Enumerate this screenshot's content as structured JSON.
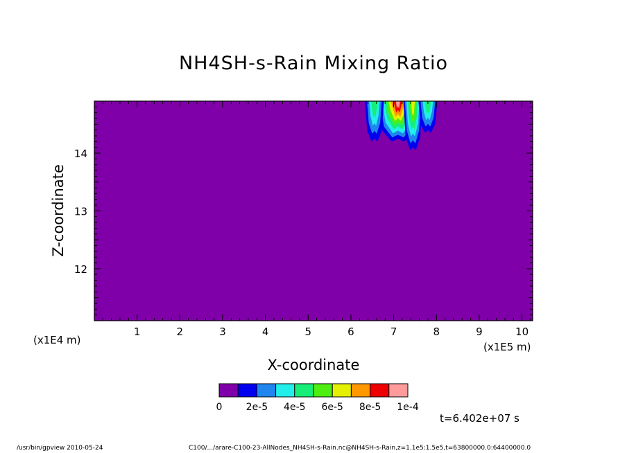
{
  "chart_data": {
    "type": "contour",
    "title": "NH4SH-s-Rain Mixing Ratio",
    "xlabel": "X-coordinate",
    "ylabel": "Z-coordinate",
    "x_scale_note": "(x1E5 m)",
    "x_scale_note_left": "(x1E4 m)",
    "xlim": [
      0,
      10.25
    ],
    "ylim": [
      11.1,
      14.9
    ],
    "xticks": [
      "1",
      "2",
      "3",
      "4",
      "5",
      "6",
      "7",
      "8",
      "9",
      "10"
    ],
    "yticks": [
      "12",
      "13",
      "14"
    ],
    "colorbar": {
      "colors": [
        "#7f00a8",
        "#0000ee",
        "#1e86ee",
        "#22eeea",
        "#16ee78",
        "#4eee12",
        "#e5f000",
        "#ff9800",
        "#ee0000",
        "#ff9b9b"
      ],
      "labels": [
        "0",
        "2e-5",
        "4e-5",
        "6e-5",
        "8e-5",
        "1e-4"
      ]
    },
    "features": [
      {
        "x": 7.1,
        "z_bottom": 14.2,
        "peak": "1e-4"
      },
      {
        "x": 6.55,
        "z_bottom": 14.2,
        "peak": "4e-5"
      },
      {
        "x": 7.45,
        "z_bottom": 14.05,
        "peak": "6e-5"
      },
      {
        "x": 7.8,
        "z_bottom": 14.35,
        "peak": "4e-5"
      }
    ]
  },
  "time_label": "t=6.402e+07 s",
  "footer": {
    "left": "/usr/bin/gpview   2010-05-24",
    "right": "C100/.../arare-C100-23-AllNodes_NH4SH-s-Rain.nc@NH4SH-s-Rain,z=1.1e5:1.5e5,t=63800000.0:64400000.0"
  }
}
